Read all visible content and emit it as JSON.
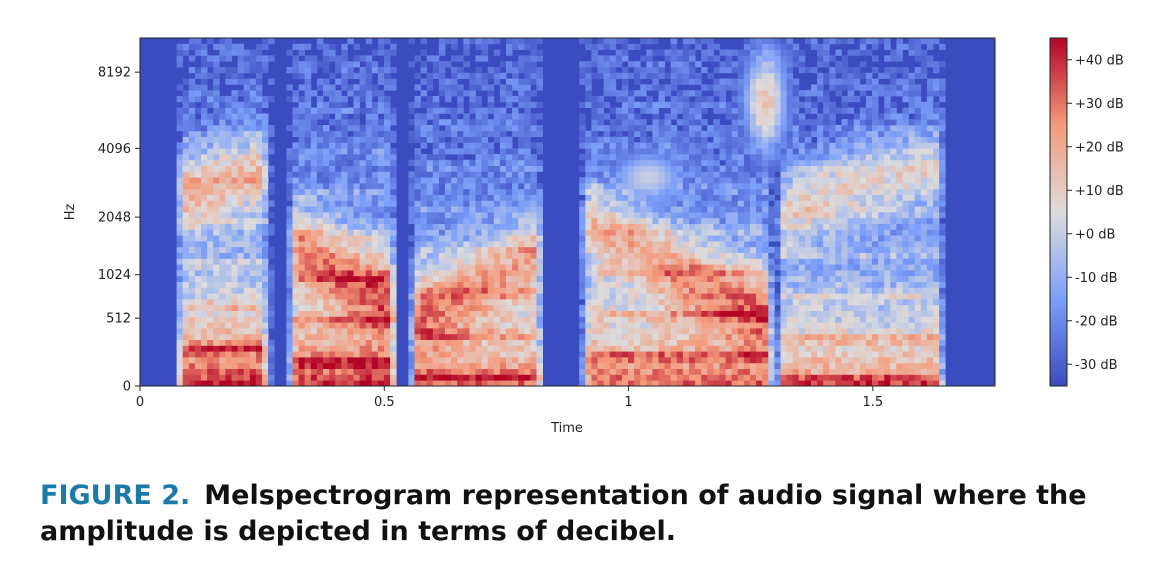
{
  "chart_data": {
    "type": "heatmap",
    "title": "",
    "xlabel": "Time",
    "ylabel": "Hz",
    "x_ticks": [
      {
        "value": 0,
        "label": "0"
      },
      {
        "value": 0.5,
        "label": "0.5"
      },
      {
        "value": 1,
        "label": "1"
      },
      {
        "value": 1.5,
        "label": "1.5"
      }
    ],
    "y_ticks": [
      "0",
      "512",
      "1024",
      "2048",
      "4096",
      "8192"
    ],
    "xlim": [
      0,
      1.75
    ],
    "y_scale": "mel",
    "colorbar": {
      "range_db": [
        -35,
        45
      ],
      "ticks": [
        {
          "value": 40,
          "label": "+40 dB"
        },
        {
          "value": 30,
          "label": "+30 dB"
        },
        {
          "value": 20,
          "label": "+20 dB"
        },
        {
          "value": 10,
          "label": "+10 dB"
        },
        {
          "value": 0,
          "label": "+0 dB"
        },
        {
          "value": -10,
          "label": "-10 dB"
        },
        {
          "value": -20,
          "label": "-20 dB"
        },
        {
          "value": -30,
          "label": "-30 dB"
        }
      ],
      "colormap": "coolwarm"
    },
    "segments": [
      {
        "start": 0.07,
        "end": 0.27,
        "energy": 1.0
      },
      {
        "start": 0.3,
        "end": 0.53,
        "energy": 1.0
      },
      {
        "start": 0.55,
        "end": 0.83,
        "energy": 0.85
      },
      {
        "start": 0.9,
        "end": 1.3,
        "energy": 0.9
      },
      {
        "start": 1.3,
        "end": 1.65,
        "energy": 0.8
      }
    ]
  },
  "caption": {
    "label": "FIGURE 2.",
    "text": "Melspectrogram representation of audio signal where the amplitude is depicted in terms of decibel."
  }
}
